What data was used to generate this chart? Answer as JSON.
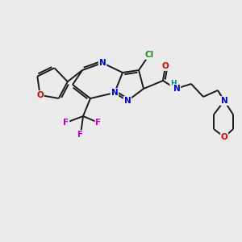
{
  "background_color": "#ebebeb",
  "bond_color": "#1a1a1a",
  "atom_colors": {
    "N": "#0000ee",
    "O": "#dd0000",
    "F": "#cc00cc",
    "Cl": "#228822",
    "H": "#008888",
    "C": "#1a1a1a"
  },
  "figsize": [
    3.0,
    3.0
  ],
  "dpi": 100
}
